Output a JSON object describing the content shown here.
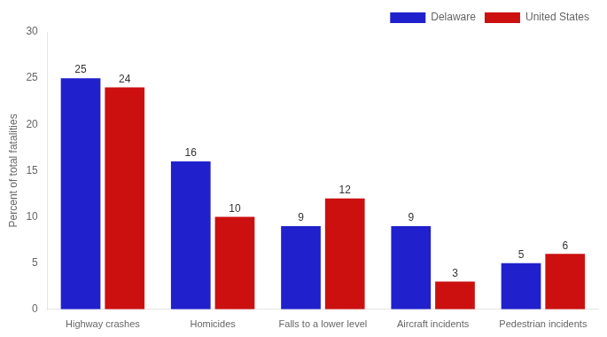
{
  "chart_data": {
    "type": "bar",
    "categories": [
      "Highway crashes",
      "Homicides",
      "Falls to a lower level",
      "Aircraft incidents",
      "Pedestrian incidents"
    ],
    "series": [
      {
        "name": "Delaware",
        "color": "#2020CC",
        "values": [
          25,
          16,
          9,
          9,
          5
        ]
      },
      {
        "name": "United States",
        "color": "#CC1010",
        "values": [
          24,
          10,
          12,
          3,
          6
        ]
      }
    ],
    "ylabel": "Percent of total fatalities",
    "ylim": [
      0,
      30
    ],
    "yticks": [
      0,
      5,
      10,
      15,
      20,
      25,
      30
    ],
    "grid": false,
    "legend": "upper right",
    "data_labels": true
  }
}
